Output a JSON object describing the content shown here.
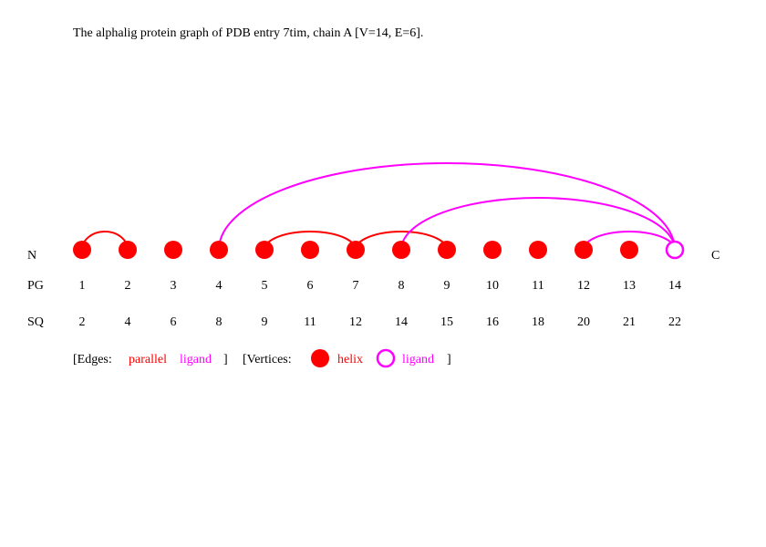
{
  "title": "The alphalig protein graph of PDB entry 7tim, chain A [V=14, E=6].",
  "terminus": {
    "n": "N",
    "c": "C"
  },
  "row_labels": {
    "pg": "PG",
    "sq": "SQ"
  },
  "colors": {
    "helix": "#ff0000",
    "ligand": "#ff00ff",
    "text": "#000000"
  },
  "vertices": [
    {
      "pg": "1",
      "sq": "2",
      "type": "helix"
    },
    {
      "pg": "2",
      "sq": "4",
      "type": "helix"
    },
    {
      "pg": "3",
      "sq": "6",
      "type": "helix"
    },
    {
      "pg": "4",
      "sq": "8",
      "type": "helix"
    },
    {
      "pg": "5",
      "sq": "9",
      "type": "helix"
    },
    {
      "pg": "6",
      "sq": "11",
      "type": "helix"
    },
    {
      "pg": "7",
      "sq": "12",
      "type": "helix"
    },
    {
      "pg": "8",
      "sq": "14",
      "type": "helix"
    },
    {
      "pg": "9",
      "sq": "15",
      "type": "helix"
    },
    {
      "pg": "10",
      "sq": "16",
      "type": "helix"
    },
    {
      "pg": "11",
      "sq": "18",
      "type": "helix"
    },
    {
      "pg": "12",
      "sq": "20",
      "type": "helix"
    },
    {
      "pg": "13",
      "sq": "21",
      "type": "helix"
    },
    {
      "pg": "14",
      "sq": "22",
      "type": "ligand"
    }
  ],
  "edges": [
    {
      "from": 1,
      "to": 2,
      "type": "parallel"
    },
    {
      "from": 5,
      "to": 7,
      "type": "parallel"
    },
    {
      "from": 7,
      "to": 9,
      "type": "parallel"
    },
    {
      "from": 4,
      "to": 14,
      "type": "ligand"
    },
    {
      "from": 8,
      "to": 14,
      "type": "ligand"
    },
    {
      "from": 12,
      "to": 14,
      "type": "ligand"
    }
  ],
  "legend": {
    "edges_open": "[Edges:",
    "edge_parallel": "parallel",
    "edge_ligand": "ligand",
    "edges_close": "]",
    "vertices_open": "[Vertices:",
    "vertex_helix": "helix",
    "vertex_ligand": "ligand",
    "vertices_close": "]"
  }
}
